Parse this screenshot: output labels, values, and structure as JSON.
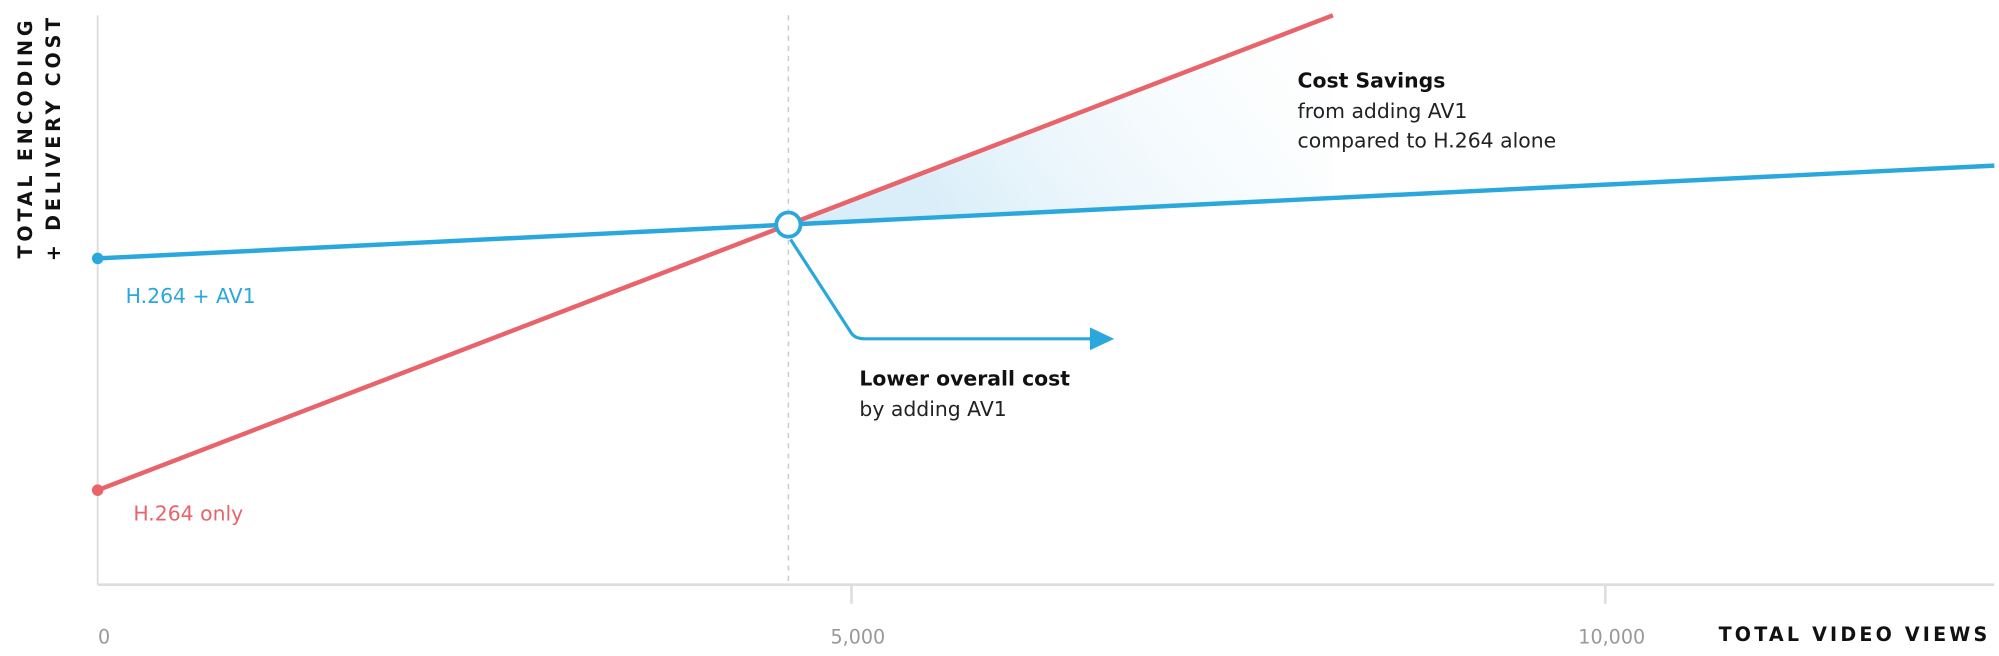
{
  "chart_data": {
    "type": "line",
    "y_label_lines": [
      "TOTAL ENCODING",
      "+ DELIVERY COST"
    ],
    "x_label": "TOTAL VIDEO VIEWS",
    "xlim": [
      0,
      12580
    ],
    "ylim": [
      0,
      100
    ],
    "xticks": [
      0,
      {
        "value": 5000,
        "label": "5,000"
      },
      {
        "value": 10000,
        "label": "10,000"
      }
    ],
    "series": [
      {
        "name": "H.264 + AV1",
        "color": "#2aa7dd",
        "x": [
          0,
          12580
        ],
        "values": [
          57.3,
          73.6
        ]
      },
      {
        "name": "H.264 only",
        "color": "#e8636a",
        "x": [
          0,
          8193
        ],
        "values": [
          16.6,
          100
        ]
      }
    ],
    "annotations": [
      {
        "title": "Cost Savings",
        "lines": [
          "from adding AV1",
          "compared to H.264 alone"
        ]
      },
      {
        "title": "Lower overall cost",
        "lines": [
          "by adding AV1"
        ]
      }
    ]
  }
}
